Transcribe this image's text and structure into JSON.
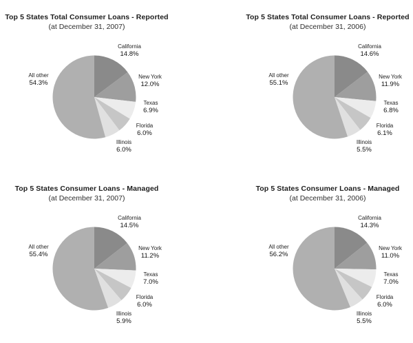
{
  "colors": {
    "California": "#8a8a8a",
    "New York": "#9e9e9e",
    "Texas": "#ececec",
    "Florida": "#c6c6c6",
    "Illinois": "#e0e0e0",
    "All other": "#b0b0b0"
  },
  "chart_data": [
    {
      "type": "pie",
      "title": "Top 5 States Total Consumer Loans - Reported",
      "subtitle": "(at December 31, 2007)",
      "legend_position": "callout-labels-around-pie",
      "start_angle_deg": 0,
      "direction": "clockwise-from-12-oclock",
      "slices": [
        {
          "label": "California",
          "pct": 14.8,
          "pct_text": "14.8%"
        },
        {
          "label": "New York",
          "pct": 12.0,
          "pct_text": "12.0%"
        },
        {
          "label": "Texas",
          "pct": 6.9,
          "pct_text": "6.9%"
        },
        {
          "label": "Florida",
          "pct": 6.0,
          "pct_text": "6.0%"
        },
        {
          "label": "Illinois",
          "pct": 6.0,
          "pct_text": "6.0%"
        },
        {
          "label": "All other",
          "pct": 54.3,
          "pct_text": "54.3%"
        }
      ]
    },
    {
      "type": "pie",
      "title": "Top 5 States Total Consumer Loans - Reported",
      "subtitle": "(at December 31, 2006)",
      "legend_position": "callout-labels-around-pie",
      "start_angle_deg": 0,
      "direction": "clockwise-from-12-oclock",
      "slices": [
        {
          "label": "California",
          "pct": 14.6,
          "pct_text": "14.6%"
        },
        {
          "label": "New York",
          "pct": 11.9,
          "pct_text": "11.9%"
        },
        {
          "label": "Texas",
          "pct": 6.8,
          "pct_text": "6.8%"
        },
        {
          "label": "Florida",
          "pct": 6.1,
          "pct_text": "6.1%"
        },
        {
          "label": "Illinois",
          "pct": 5.5,
          "pct_text": "5.5%"
        },
        {
          "label": "All other",
          "pct": 55.1,
          "pct_text": "55.1%"
        }
      ]
    },
    {
      "type": "pie",
      "title": "Top 5 States Consumer Loans - Managed",
      "subtitle": "(at December 31, 2007)",
      "legend_position": "callout-labels-around-pie",
      "start_angle_deg": 0,
      "direction": "clockwise-from-12-oclock",
      "slices": [
        {
          "label": "California",
          "pct": 14.5,
          "pct_text": "14.5%"
        },
        {
          "label": "New York",
          "pct": 11.2,
          "pct_text": "11.2%"
        },
        {
          "label": "Texas",
          "pct": 7.0,
          "pct_text": "7.0%"
        },
        {
          "label": "Florida",
          "pct": 6.0,
          "pct_text": "6.0%"
        },
        {
          "label": "Illinois",
          "pct": 5.9,
          "pct_text": "5.9%"
        },
        {
          "label": "All other",
          "pct": 55.4,
          "pct_text": "55.4%"
        }
      ]
    },
    {
      "type": "pie",
      "title": "Top 5 States Consumer Loans - Managed",
      "subtitle": "(at December 31, 2006)",
      "legend_position": "callout-labels-around-pie",
      "start_angle_deg": 0,
      "direction": "clockwise-from-12-oclock",
      "slices": [
        {
          "label": "California",
          "pct": 14.3,
          "pct_text": "14.3%"
        },
        {
          "label": "New York",
          "pct": 11.0,
          "pct_text": "11.0%"
        },
        {
          "label": "Texas",
          "pct": 7.0,
          "pct_text": "7.0%"
        },
        {
          "label": "Florida",
          "pct": 6.0,
          "pct_text": "6.0%"
        },
        {
          "label": "Illinois",
          "pct": 5.5,
          "pct_text": "5.5%"
        },
        {
          "label": "All other",
          "pct": 56.2,
          "pct_text": "56.2%"
        }
      ]
    }
  ]
}
